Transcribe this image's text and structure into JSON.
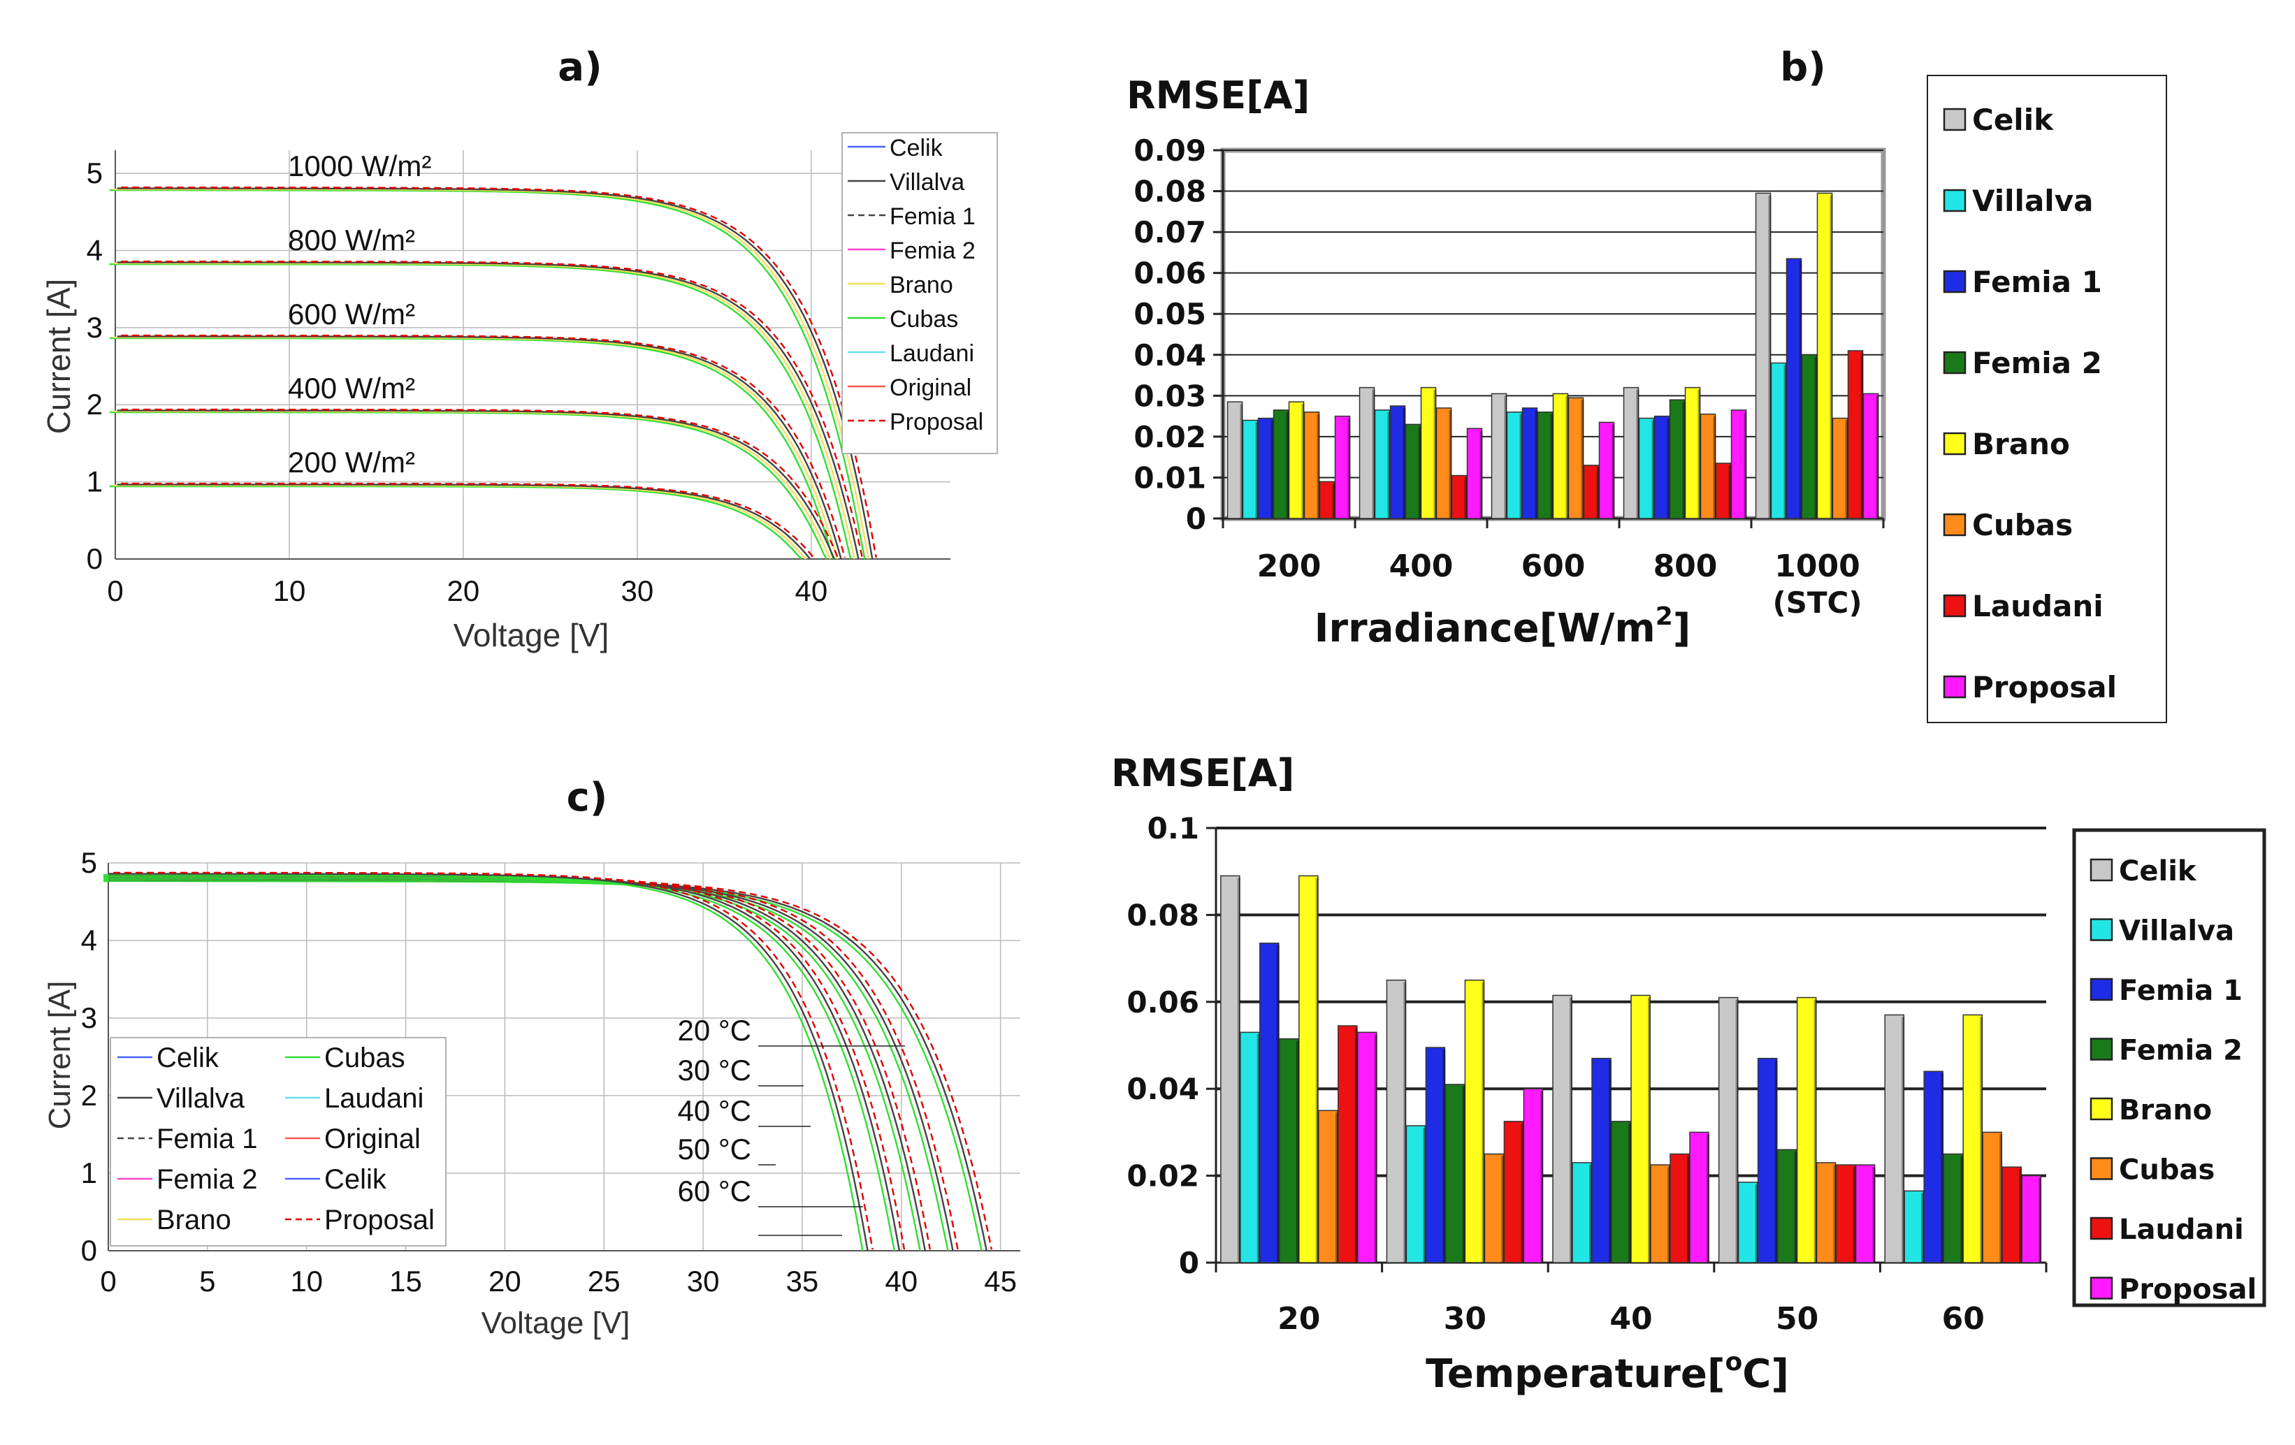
{
  "chart_data": [
    {
      "id": "a",
      "type": "line",
      "panel_label": "a)",
      "xlabel": "Voltage [V]",
      "ylabel": "Current [A]",
      "xlim": [
        0,
        48
      ],
      "ylim": [
        0,
        5.3
      ],
      "xticks": [
        "0",
        "10",
        "20",
        "30",
        "40"
      ],
      "yticks": [
        "0",
        "1",
        "2",
        "3",
        "4",
        "5"
      ],
      "curve_labels": [
        "1000 W/m²",
        "800 W/m²",
        "600 W/m²",
        "400 W/m²",
        "200 W/m²"
      ],
      "curves": [
        {
          "isc": 4.8,
          "voc": 43.4
        },
        {
          "isc": 3.84,
          "voc": 42.6
        },
        {
          "isc": 2.88,
          "voc": 41.6
        },
        {
          "isc": 1.92,
          "voc": 41.2
        },
        {
          "isc": 0.96,
          "voc": 39.8
        }
      ],
      "legend": [
        "Celik",
        "Villalva",
        "Femia 1",
        "Femia 2",
        "Brano",
        "Cubas",
        "Laudani",
        "Original",
        "Proposal"
      ],
      "legend_colors": [
        "#4a63ff",
        "#444444",
        "#444444",
        "#ff44cc",
        "#f2e05a",
        "#33dd33",
        "#66e0ee",
        "#ff5555",
        "#e00000"
      ],
      "legend_dash": [
        false,
        false,
        true,
        false,
        false,
        false,
        false,
        false,
        true
      ]
    },
    {
      "id": "b",
      "type": "bar",
      "panel_label": "b)",
      "ylabel": "RMSE[A]",
      "xlabel_main": "Irradiance[W/m",
      "xlabel_sup": "2",
      "xlabel_end": "]",
      "ylim": [
        0,
        0.09
      ],
      "yticks": [
        "0",
        "0.01",
        "0.02",
        "0.03",
        "0.04",
        "0.05",
        "0.06",
        "0.07",
        "0.08",
        "0.09"
      ],
      "categories": [
        "200",
        "400",
        "600",
        "800",
        "1000"
      ],
      "category_sub": [
        "",
        "",
        "",
        "",
        "(STC)"
      ],
      "series": [
        {
          "name": "Celik",
          "color": "#c8c8c8",
          "values": [
            0.0285,
            0.032,
            0.0305,
            0.032,
            0.0795
          ]
        },
        {
          "name": "Villalva",
          "color": "#22e6e6",
          "values": [
            0.024,
            0.0265,
            0.026,
            0.0245,
            0.038
          ]
        },
        {
          "name": "Femia 1",
          "color": "#1f2ce6",
          "values": [
            0.0245,
            0.0275,
            0.027,
            0.025,
            0.0635
          ]
        },
        {
          "name": "Femia 2",
          "color": "#1a7a1a",
          "values": [
            0.0265,
            0.023,
            0.026,
            0.029,
            0.04
          ]
        },
        {
          "name": "Brano",
          "color": "#ffff1a",
          "values": [
            0.0285,
            0.032,
            0.0305,
            0.032,
            0.0795
          ]
        },
        {
          "name": "Cubas",
          "color": "#ff8c1a",
          "values": [
            0.026,
            0.027,
            0.0295,
            0.0255,
            0.0245
          ]
        },
        {
          "name": "Laudani",
          "color": "#ee1111",
          "values": [
            0.009,
            0.0105,
            0.013,
            0.0135,
            0.041
          ]
        },
        {
          "name": "Proposal",
          "color": "#ff1aff",
          "values": [
            0.025,
            0.022,
            0.0235,
            0.0265,
            0.0305
          ]
        }
      ]
    },
    {
      "id": "c",
      "type": "line",
      "panel_label": "c)",
      "xlabel": "Voltage [V]",
      "ylabel": "Current [A]",
      "xlim": [
        0,
        46
      ],
      "ylim": [
        0,
        5
      ],
      "xticks": [
        "0",
        "5",
        "10",
        "15",
        "20",
        "25",
        "30",
        "35",
        "40",
        "45"
      ],
      "yticks": [
        "0",
        "1",
        "2",
        "3",
        "4",
        "5"
      ],
      "curve_labels": [
        "20 °C",
        "30 °C",
        "40 °C",
        "50 °C",
        "60 °C"
      ],
      "curves": [
        {
          "isc": 4.78,
          "voc": 44.3
        },
        {
          "isc": 4.8,
          "voc": 42.6
        },
        {
          "isc": 4.82,
          "voc": 41.2
        },
        {
          "isc": 4.84,
          "voc": 39.9
        },
        {
          "isc": 4.86,
          "voc": 38.3
        }
      ],
      "legend": [
        "Celik",
        "Villalva",
        "Femia 1",
        "Femia 2",
        "Brano",
        "Cubas",
        "Laudani",
        "Original",
        "Celik",
        "Proposal"
      ],
      "legend_colors": [
        "#4a63ff",
        "#444444",
        "#444444",
        "#ff44cc",
        "#f2e05a",
        "#33dd33",
        "#66e0ee",
        "#ff5555",
        "#4a63ff",
        "#e00000"
      ],
      "legend_dash": [
        false,
        false,
        true,
        false,
        false,
        false,
        false,
        false,
        false,
        true
      ]
    },
    {
      "id": "d",
      "type": "bar",
      "ylabel": "RMSE[A]",
      "xlabel_main": "Temperature[",
      "xlabel_sup": "o",
      "xlabel_end": "C]",
      "ylim": [
        0,
        0.1
      ],
      "yticks": [
        "0",
        "0.02",
        "0.04",
        "0.06",
        "0.08",
        "0.1"
      ],
      "categories": [
        "20",
        "30",
        "40",
        "50",
        "60"
      ],
      "series": [
        {
          "name": "Celik",
          "color": "#c8c8c8",
          "values": [
            0.089,
            0.065,
            0.0615,
            0.061,
            0.057
          ]
        },
        {
          "name": "Villalva",
          "color": "#22e6e6",
          "values": [
            0.053,
            0.0315,
            0.023,
            0.0185,
            0.0165
          ]
        },
        {
          "name": "Femia 1",
          "color": "#1f2ce6",
          "values": [
            0.0735,
            0.0495,
            0.047,
            0.047,
            0.044
          ]
        },
        {
          "name": "Femia 2",
          "color": "#1a7a1a",
          "values": [
            0.0515,
            0.041,
            0.0325,
            0.026,
            0.025
          ]
        },
        {
          "name": "Brano",
          "color": "#ffff1a",
          "values": [
            0.089,
            0.065,
            0.0615,
            0.061,
            0.057
          ]
        },
        {
          "name": "Cubas",
          "color": "#ff8c1a",
          "values": [
            0.035,
            0.025,
            0.0225,
            0.023,
            0.03
          ]
        },
        {
          "name": "Laudani",
          "color": "#ee1111",
          "values": [
            0.0545,
            0.0325,
            0.025,
            0.0225,
            0.022
          ]
        },
        {
          "name": "Proposal",
          "color": "#ff1aff",
          "values": [
            0.053,
            0.04,
            0.03,
            0.0225,
            0.02
          ]
        }
      ]
    }
  ]
}
